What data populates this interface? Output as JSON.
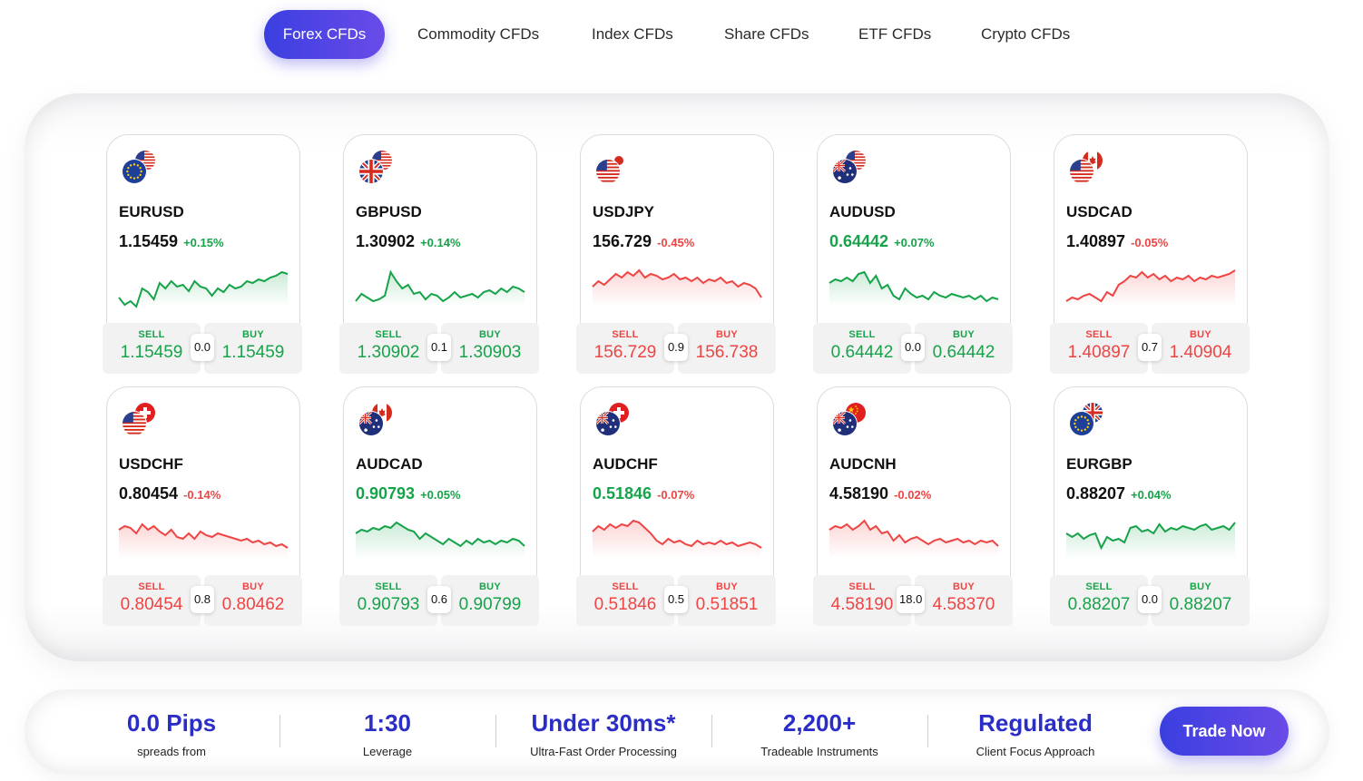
{
  "tabs": [
    {
      "label": "Forex CFDs",
      "active": true
    },
    {
      "label": "Commodity CFDs"
    },
    {
      "label": "Index CFDs"
    },
    {
      "label": "Share CFDs"
    },
    {
      "label": "ETF CFDs"
    },
    {
      "label": "Crypto CFDs"
    }
  ],
  "colors": {
    "accent": "#3b3fe0",
    "up": "#16a34a",
    "down": "#ef4444"
  },
  "instruments": [
    {
      "symbol": "EURUSD",
      "price": "1.15459",
      "change": "+0.15%",
      "trend": "up",
      "price_color": "dark",
      "sell_label": "SELL",
      "sell": "1.15459",
      "buy_label": "BUY",
      "buy": "1.15459",
      "spread": "0.0",
      "flags": [
        "eu-flag-icon",
        "us-flag-icon"
      ],
      "sparkline": [
        40,
        48,
        44,
        50,
        30,
        34,
        42,
        24,
        30,
        22,
        28,
        26,
        33,
        22,
        28,
        30,
        38,
        30,
        34,
        26,
        30,
        28,
        22,
        24,
        20,
        22,
        18,
        16,
        12,
        14
      ]
    },
    {
      "symbol": "GBPUSD",
      "price": "1.30902",
      "change": "+0.14%",
      "trend": "up",
      "price_color": "dark",
      "sell_label": "SELL",
      "sell": "1.30902",
      "buy_label": "BUY",
      "buy": "1.30903",
      "spread": "0.1",
      "flags": [
        "uk-flag-icon",
        "us-flag-icon"
      ],
      "sparkline": [
        44,
        36,
        40,
        44,
        42,
        38,
        12,
        22,
        30,
        26,
        36,
        34,
        42,
        36,
        38,
        44,
        40,
        34,
        40,
        38,
        36,
        40,
        34,
        32,
        36,
        30,
        34,
        28,
        30,
        34
      ]
    },
    {
      "symbol": "USDJPY",
      "price": "156.729",
      "change": "-0.45%",
      "trend": "down",
      "price_color": "dark",
      "sell_label": "SELL",
      "sell": "156.729",
      "buy_label": "BUY",
      "buy": "156.738",
      "spread": "0.9",
      "flags": [
        "us-flag-icon",
        "jp-flag-icon"
      ],
      "sparkline": [
        28,
        22,
        26,
        20,
        14,
        18,
        12,
        16,
        10,
        18,
        14,
        16,
        20,
        18,
        14,
        20,
        18,
        22,
        18,
        24,
        20,
        22,
        18,
        24,
        22,
        28,
        24,
        26,
        30,
        40
      ]
    },
    {
      "symbol": "AUDUSD",
      "price": "0.64442",
      "change": "+0.07%",
      "trend": "up",
      "price_color": "green",
      "sell_label": "SELL",
      "sell": "0.64442",
      "buy_label": "BUY",
      "buy": "0.64442",
      "spread": "0.0",
      "flags": [
        "au-flag-icon",
        "us-flag-icon"
      ],
      "sparkline": [
        24,
        20,
        22,
        18,
        22,
        14,
        12,
        24,
        16,
        30,
        26,
        38,
        42,
        30,
        36,
        40,
        38,
        42,
        34,
        38,
        40,
        36,
        38,
        40,
        38,
        42,
        38,
        44,
        40,
        42
      ]
    },
    {
      "symbol": "USDCAD",
      "price": "1.40897",
      "change": "-0.05%",
      "trend": "down",
      "price_color": "dark",
      "sell_label": "SELL",
      "sell": "1.40897",
      "buy_label": "BUY",
      "buy": "1.40904",
      "spread": "0.7",
      "flags": [
        "us-flag-icon",
        "ca-flag-icon"
      ],
      "sparkline": [
        44,
        40,
        42,
        38,
        36,
        40,
        44,
        34,
        38,
        26,
        22,
        16,
        18,
        12,
        18,
        14,
        20,
        16,
        22,
        18,
        20,
        16,
        22,
        18,
        20,
        16,
        18,
        16,
        14,
        10
      ]
    },
    {
      "symbol": "USDCHF",
      "price": "0.80454",
      "change": "-0.14%",
      "trend": "down",
      "price_color": "dark",
      "sell_label": "SELL",
      "sell": "0.80454",
      "buy_label": "BUY",
      "buy": "0.80462",
      "spread": "0.8",
      "flags": [
        "us-flag-icon",
        "ch-flag-icon"
      ],
      "sparkline": [
        18,
        14,
        16,
        22,
        12,
        18,
        14,
        20,
        24,
        18,
        26,
        28,
        22,
        28,
        20,
        24,
        26,
        22,
        24,
        26,
        28,
        30,
        28,
        32,
        30,
        34,
        32,
        36,
        34,
        38
      ]
    },
    {
      "symbol": "AUDCAD",
      "price": "0.90793",
      "change": "+0.05%",
      "trend": "up",
      "price_color": "green",
      "sell_label": "SELL",
      "sell": "0.90793",
      "buy_label": "BUY",
      "buy": "0.90799",
      "spread": "0.6",
      "flags": [
        "au-flag-icon",
        "ca-flag-icon"
      ],
      "sparkline": [
        22,
        18,
        20,
        16,
        18,
        14,
        16,
        10,
        14,
        18,
        20,
        28,
        22,
        26,
        30,
        34,
        28,
        32,
        36,
        30,
        34,
        28,
        32,
        30,
        34,
        30,
        32,
        28,
        30,
        36
      ]
    },
    {
      "symbol": "AUDCHF",
      "price": "0.51846",
      "change": "-0.07%",
      "trend": "down",
      "price_color": "green",
      "sell_label": "SELL",
      "sell": "0.51846",
      "buy_label": "BUY",
      "buy": "0.51851",
      "spread": "0.5",
      "flags": [
        "au-flag-icon",
        "ch-flag-icon"
      ],
      "sparkline": [
        20,
        14,
        18,
        12,
        16,
        12,
        14,
        8,
        10,
        16,
        22,
        30,
        34,
        28,
        32,
        30,
        34,
        36,
        30,
        34,
        32,
        34,
        30,
        34,
        32,
        36,
        34,
        32,
        34,
        38
      ]
    },
    {
      "symbol": "AUDCNH",
      "price": "4.58190",
      "change": "-0.02%",
      "trend": "down",
      "price_color": "dark",
      "sell_label": "SELL",
      "sell": "4.58190",
      "buy_label": "BUY",
      "buy": "4.58370",
      "spread": "18.0",
      "flags": [
        "au-flag-icon",
        "cn-flag-icon"
      ],
      "sparkline": [
        18,
        14,
        16,
        12,
        18,
        14,
        8,
        18,
        14,
        22,
        20,
        30,
        24,
        32,
        28,
        26,
        30,
        34,
        30,
        28,
        32,
        30,
        28,
        32,
        30,
        34,
        30,
        32,
        30,
        36
      ]
    },
    {
      "symbol": "EURGBP",
      "price": "0.88207",
      "change": "+0.04%",
      "trend": "up",
      "price_color": "dark",
      "sell_label": "SELL",
      "sell": "0.88207",
      "buy_label": "BUY",
      "buy": "0.88207",
      "spread": "0.0",
      "flags": [
        "eu-flag-icon",
        "uk-flag-icon"
      ],
      "sparkline": [
        22,
        26,
        22,
        28,
        24,
        22,
        38,
        26,
        30,
        28,
        32,
        16,
        14,
        20,
        18,
        22,
        12,
        20,
        16,
        18,
        14,
        16,
        18,
        14,
        12,
        18,
        16,
        14,
        18,
        10
      ]
    }
  ],
  "stats": [
    {
      "value": "0.0 Pips",
      "label": "spreads from"
    },
    {
      "value": "1:30",
      "label": "Leverage"
    },
    {
      "value": "Under 30ms*",
      "label": "Ultra-Fast Order Processing"
    },
    {
      "value": "2,200+",
      "label": "Tradeable Instruments"
    },
    {
      "value": "Regulated",
      "label": "Client Focus Approach"
    }
  ],
  "cta": {
    "label": "Trade Now"
  }
}
